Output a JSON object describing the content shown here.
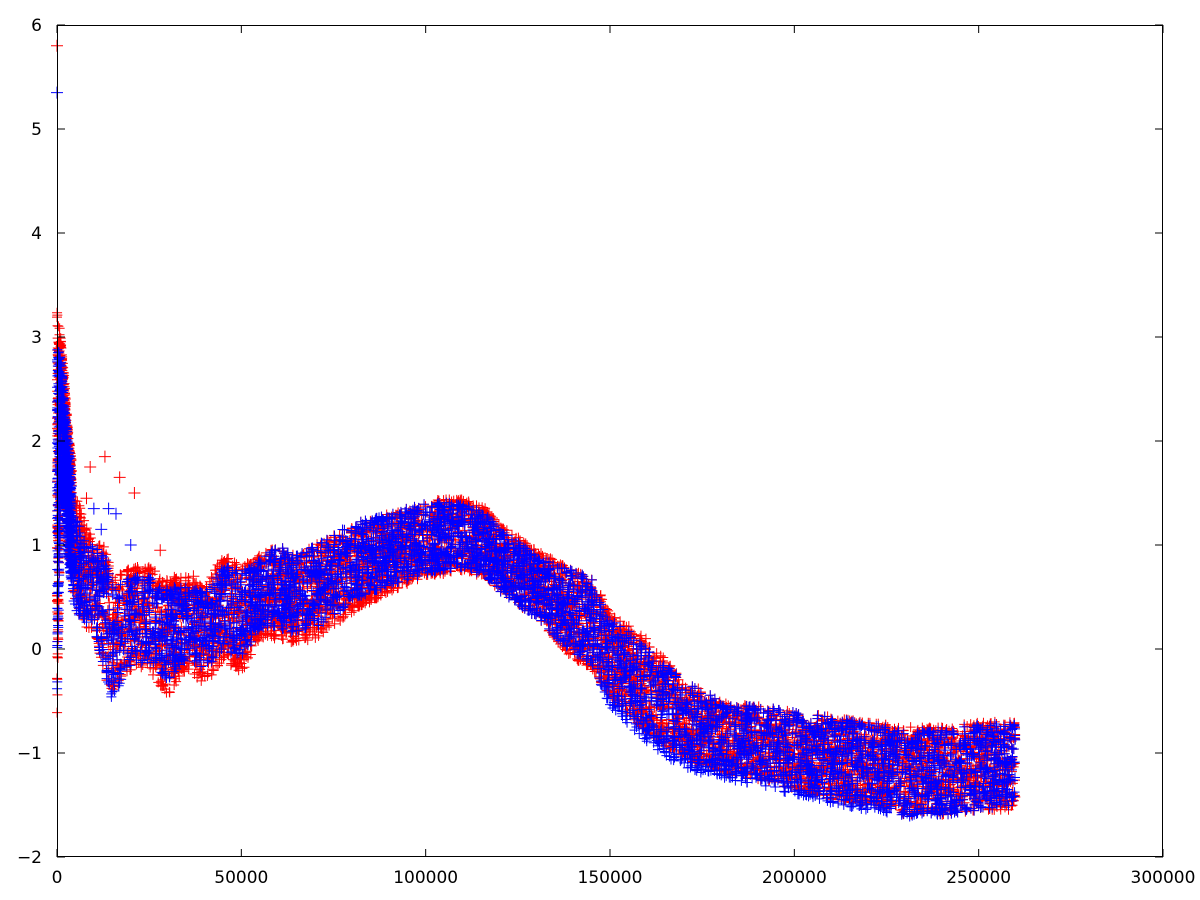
{
  "chart_data": {
    "type": "scatter",
    "title": "",
    "xlabel": "",
    "ylabel": "",
    "xlim": [
      0,
      300000
    ],
    "ylim": [
      -2,
      6
    ],
    "grid": false,
    "marker": "plus",
    "x_ticks": [
      "0",
      "50000",
      "100000",
      "150000",
      "200000",
      "250000",
      "300000"
    ],
    "y_ticks": [
      "6",
      "5",
      "4",
      "3",
      "2",
      "1",
      "0",
      "−1",
      "−2"
    ],
    "x_tick_values": [
      0,
      50000,
      100000,
      150000,
      200000,
      250000,
      300000
    ],
    "y_tick_values": [
      6,
      5,
      4,
      3,
      2,
      1,
      0,
      -1,
      -2
    ],
    "series": [
      {
        "color": "#ff0000",
        "envelope_x": [
          0,
          1000,
          2000,
          3000,
          5000,
          8000,
          10000,
          13000,
          15000,
          20000,
          25000,
          30000,
          35000,
          40000,
          45000,
          50000,
          55000,
          60000,
          65000,
          70000,
          80000,
          90000,
          100000,
          105000,
          110000,
          115000,
          120000,
          130000,
          140000,
          145000,
          150000,
          160000,
          170000,
          180000,
          190000,
          200000,
          210000,
          220000,
          230000,
          240000,
          250000,
          260000
        ],
        "envelope_upper": [
          3.3,
          3.0,
          2.6,
          2.1,
          1.5,
          1.2,
          1.0,
          1.0,
          0.7,
          0.8,
          0.8,
          0.7,
          0.7,
          0.6,
          0.9,
          0.8,
          0.9,
          1.0,
          0.9,
          1.0,
          1.2,
          1.3,
          1.4,
          1.45,
          1.45,
          1.4,
          1.2,
          0.95,
          0.75,
          0.7,
          0.35,
          0.1,
          -0.3,
          -0.5,
          -0.55,
          -0.6,
          -0.65,
          -0.7,
          -0.75,
          -0.75,
          -0.7,
          -0.7
        ],
        "envelope_lower": [
          -0.75,
          1.4,
          1.6,
          1.0,
          0.4,
          0.2,
          0.2,
          -0.3,
          -0.4,
          -0.2,
          -0.2,
          -0.45,
          -0.2,
          -0.35,
          -0.1,
          -0.25,
          0.1,
          0.1,
          0.05,
          0.1,
          0.35,
          0.55,
          0.7,
          0.72,
          0.75,
          0.7,
          0.55,
          0.3,
          -0.1,
          -0.2,
          -0.45,
          -0.8,
          -1.05,
          -1.2,
          -1.25,
          -1.35,
          -1.45,
          -1.5,
          -1.6,
          -1.6,
          -1.55,
          -1.55
        ],
        "outliers": [
          [
            0,
            5.8
          ],
          [
            9000,
            1.75
          ],
          [
            13000,
            1.85
          ],
          [
            17000,
            1.65
          ],
          [
            21000,
            1.5
          ],
          [
            8000,
            1.45
          ],
          [
            28000,
            0.95
          ],
          [
            37000,
            0.7
          ]
        ]
      },
      {
        "color": "#0000ff",
        "envelope_x": [
          0,
          1000,
          2000,
          3000,
          5000,
          8000,
          10000,
          13000,
          15000,
          20000,
          25000,
          30000,
          35000,
          40000,
          45000,
          50000,
          55000,
          60000,
          65000,
          70000,
          80000,
          90000,
          100000,
          105000,
          110000,
          115000,
          120000,
          130000,
          140000,
          145000,
          150000,
          160000,
          170000,
          180000,
          190000,
          200000,
          210000,
          220000,
          230000,
          240000,
          250000,
          260000
        ],
        "envelope_upper": [
          3.0,
          2.8,
          2.4,
          2.0,
          1.3,
          1.0,
          1.0,
          0.95,
          0.6,
          0.7,
          0.7,
          0.6,
          0.6,
          0.55,
          0.8,
          0.75,
          0.85,
          1.0,
          0.9,
          1.0,
          1.2,
          1.3,
          1.4,
          1.42,
          1.4,
          1.35,
          1.15,
          0.9,
          0.75,
          0.7,
          0.3,
          0.05,
          -0.3,
          -0.5,
          -0.55,
          -0.6,
          -0.65,
          -0.72,
          -0.78,
          -0.78,
          -0.72,
          -0.72
        ],
        "envelope_lower": [
          -0.5,
          1.3,
          1.5,
          0.9,
          0.3,
          0.25,
          0.2,
          -0.25,
          -0.5,
          -0.15,
          -0.15,
          -0.3,
          -0.1,
          -0.2,
          0.0,
          -0.1,
          0.2,
          0.2,
          0.15,
          0.2,
          0.45,
          0.62,
          0.72,
          0.75,
          0.78,
          0.72,
          0.55,
          0.3,
          -0.05,
          -0.15,
          -0.55,
          -0.9,
          -1.15,
          -1.25,
          -1.3,
          -1.4,
          -1.48,
          -1.55,
          -1.62,
          -1.6,
          -1.55,
          -1.5
        ],
        "outliers": [
          [
            0,
            5.35
          ],
          [
            10000,
            1.35
          ],
          [
            14000,
            1.35
          ],
          [
            16000,
            1.3
          ],
          [
            20000,
            1.0
          ],
          [
            12000,
            1.15
          ]
        ]
      }
    ]
  }
}
